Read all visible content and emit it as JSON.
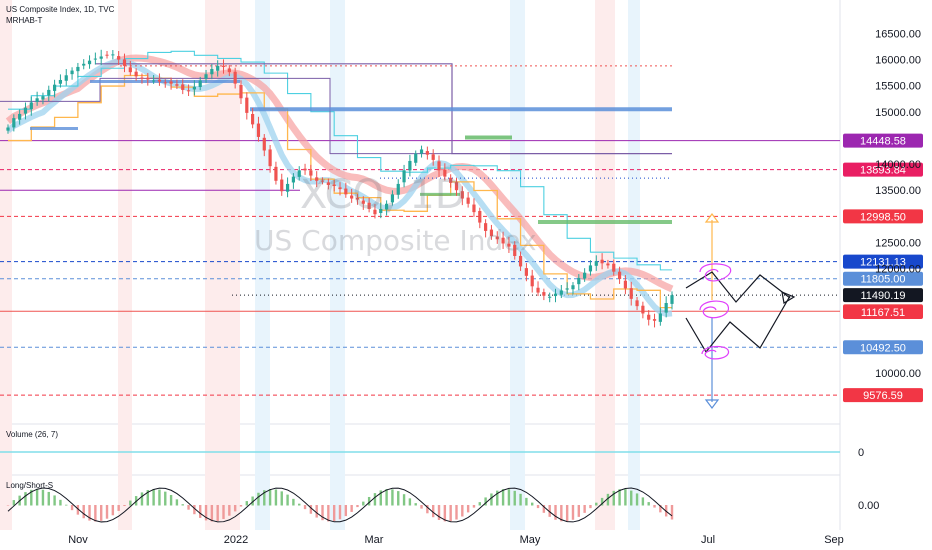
{
  "header": {
    "title": "US Composite Index, 1D, TVC",
    "indicator": "MRHAB-T"
  },
  "watermark": {
    "symbol": "XCO, 1D",
    "name": "US Composite Index"
  },
  "colors": {
    "up_candle": "#26a69a",
    "down_candle": "#ef5350",
    "ema_band_red": "#f6a0a0",
    "ema_band_blue": "#9fd3ef",
    "orange_line": "#ffb74d",
    "teal_line": "#4dd0e1",
    "purple_line": "#7b5ea7",
    "blue_band": "#5b8fd9",
    "green_band": "#66bb6a",
    "drawing_pink": "#e040fb"
  },
  "chart_data": {
    "type": "candlestick",
    "x_labels": [
      "Nov",
      "2022",
      "Mar",
      "May",
      "Jul",
      "Sep"
    ],
    "y_ticks": [
      "16500.00",
      "16000.00",
      "15500.00",
      "15000.00",
      "14000.00",
      "13500.00",
      "12500.00",
      "12000.00",
      "10000.00"
    ],
    "ylim": [
      9100,
      16950
    ],
    "grid": false,
    "current_price": 11490.19,
    "price_levels": [
      {
        "value": 14448.58,
        "label": "14448.58",
        "color": "#9c27b0",
        "style": "solid"
      },
      {
        "value": 13893.84,
        "label": "13893.84",
        "color": "#e91e63",
        "style": "dashed"
      },
      {
        "value": 12998.5,
        "label": "12998.50",
        "color": "#f23645",
        "style": "dashed"
      },
      {
        "value": 12131.13,
        "label": "12131.13",
        "color": "#1848cc",
        "style": "dashed"
      },
      {
        "value": 11805.0,
        "label": "11805.00",
        "color": "#5b8fd9",
        "style": "dashed"
      },
      {
        "value": 11490.19,
        "label": "11490.19",
        "color": "#131722",
        "style": "dotted"
      },
      {
        "value": 11181.55,
        "label": "11181.55",
        "color": "#ef5350",
        "style": "solid"
      },
      {
        "value": 11167.51,
        "label": "11167.51",
        "color": "#f23645",
        "style": "none"
      },
      {
        "value": 10492.5,
        "label": "10492.50",
        "color": "#5b8fd9",
        "style": "dashed"
      },
      {
        "value": 9576.59,
        "label": "9576.59",
        "color": "#f23645",
        "style": "dashed"
      }
    ],
    "candles_close": [
      14700,
      14880,
      14960,
      15080,
      15180,
      15260,
      15300,
      15420,
      15520,
      15610,
      15700,
      15790,
      15860,
      15920,
      15980,
      16020,
      16060,
      16090,
      16100,
      16000,
      15880,
      15760,
      15680,
      15640,
      15620,
      15600,
      15580,
      15560,
      15540,
      15500,
      15420,
      15400,
      15480,
      15600,
      15720,
      15820,
      15880,
      15860,
      15760,
      15540,
      15260,
      14980,
      14760,
      14520,
      14260,
      13960,
      13680,
      13480,
      13620,
      13760,
      13880,
      13880,
      13780,
      13680,
      13680,
      13600,
      13580,
      13520,
      13420,
      13340,
      13320,
      13240,
      13140,
      13040,
      13140,
      13240,
      13420,
      13620,
      13880,
      14060,
      14200,
      14280,
      14180,
      14080,
      13880,
      13760,
      13640,
      13500,
      13340,
      13240,
      13080,
      12880,
      12720,
      12620,
      12560,
      12480,
      12420,
      12240,
      12040,
      11860,
      11660,
      11540,
      11480,
      11460,
      11520,
      11580,
      11620,
      11680,
      11820,
      11920,
      12060,
      12140,
      12100,
      12060,
      11940,
      11800,
      11620,
      11420,
      11280,
      11140,
      11020,
      11000,
      11140,
      11340,
      11490
    ],
    "volume_pane": {
      "label": "Volume (26, 7)",
      "y_ticks": [
        "0"
      ]
    },
    "oscillator_pane": {
      "label": "Long/Short-S",
      "y_ticks": [
        "0.00"
      ]
    }
  }
}
